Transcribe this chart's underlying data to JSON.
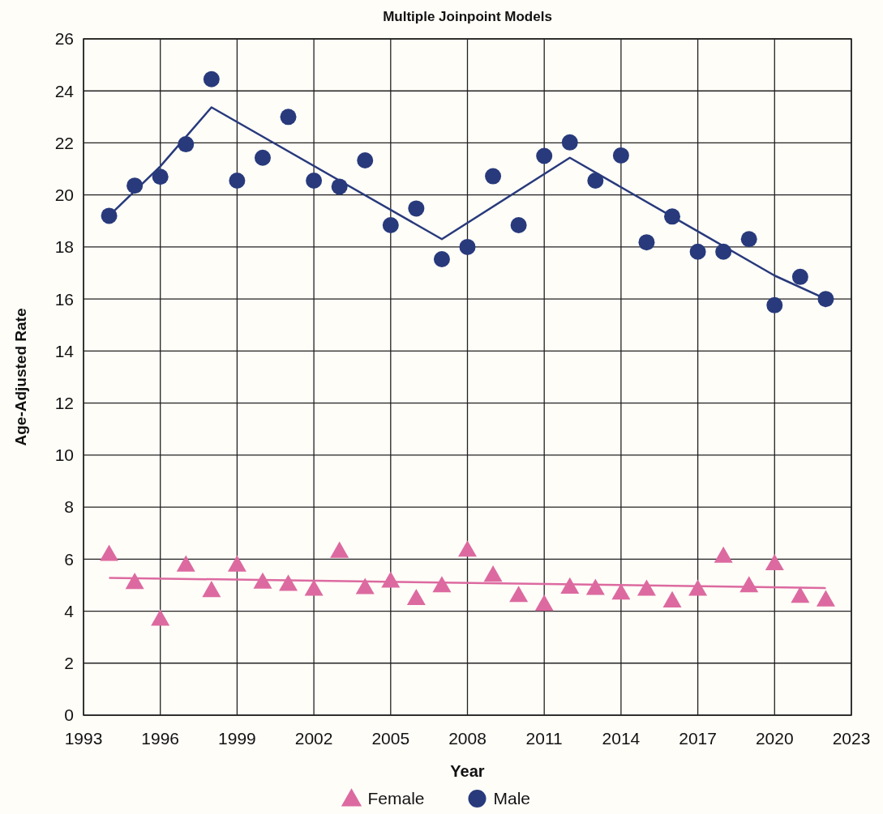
{
  "chart_data": {
    "type": "scatter",
    "title": "Multiple Joinpoint Models",
    "xlabel": "Year",
    "ylabel": "Age-Adjusted Rate",
    "xlim": [
      1993,
      2023
    ],
    "xticks": [
      1993,
      1996,
      1999,
      2002,
      2005,
      2008,
      2011,
      2014,
      2017,
      2020,
      2023
    ],
    "ylim": [
      0,
      26
    ],
    "yticks": [
      0,
      2,
      4,
      6,
      8,
      10,
      12,
      14,
      16,
      18,
      20,
      22,
      24,
      26
    ],
    "grid": true,
    "legend": "bottom",
    "series": [
      {
        "name": "Female",
        "marker": "triangle",
        "color": "#dc6aa0",
        "x": [
          1994,
          1995,
          1996,
          1997,
          1998,
          1999,
          2000,
          2001,
          2002,
          2003,
          2004,
          2005,
          2006,
          2007,
          2008,
          2009,
          2010,
          2011,
          2012,
          2013,
          2014,
          2015,
          2016,
          2017,
          2018,
          2019,
          2020,
          2021,
          2022
        ],
        "values": [
          6.2,
          5.12,
          3.71,
          5.79,
          4.81,
          5.79,
          5.13,
          5.05,
          4.86,
          6.32,
          4.92,
          5.17,
          4.5,
          4.99,
          6.36,
          5.4,
          4.62,
          4.28,
          4.94,
          4.89,
          4.71,
          4.86,
          4.41,
          4.86,
          6.13,
          4.99,
          5.84,
          4.59,
          4.45
        ]
      },
      {
        "name": "Male",
        "marker": "circle",
        "color": "#283a7c",
        "x": [
          1994,
          1995,
          1996,
          1997,
          1998,
          1999,
          2000,
          2001,
          2002,
          2003,
          2004,
          2005,
          2006,
          2007,
          2008,
          2009,
          2010,
          2011,
          2012,
          2013,
          2014,
          2015,
          2016,
          2017,
          2018,
          2019,
          2020,
          2021,
          2022
        ],
        "values": [
          19.2,
          20.36,
          20.7,
          21.95,
          24.45,
          20.55,
          21.43,
          23.0,
          20.55,
          20.32,
          21.33,
          18.84,
          19.48,
          17.53,
          18.0,
          20.72,
          18.84,
          21.5,
          22.02,
          20.55,
          21.52,
          18.18,
          19.17,
          17.82,
          17.82,
          18.3,
          15.76,
          16.85,
          16.0
        ]
      },
      {
        "type": "line",
        "marker": "none",
        "color": "#dc6aa0",
        "x": [
          1994,
          2022
        ],
        "values": [
          5.28,
          4.89
        ]
      },
      {
        "type": "line",
        "marker": "none",
        "color": "#283a7c",
        "x": [
          1994,
          1996,
          1998,
          2007,
          2012,
          2017,
          2020,
          2022
        ],
        "values": [
          19.2,
          21.1,
          23.37,
          18.3,
          21.43,
          18.6,
          16.9,
          16.0
        ]
      }
    ]
  }
}
